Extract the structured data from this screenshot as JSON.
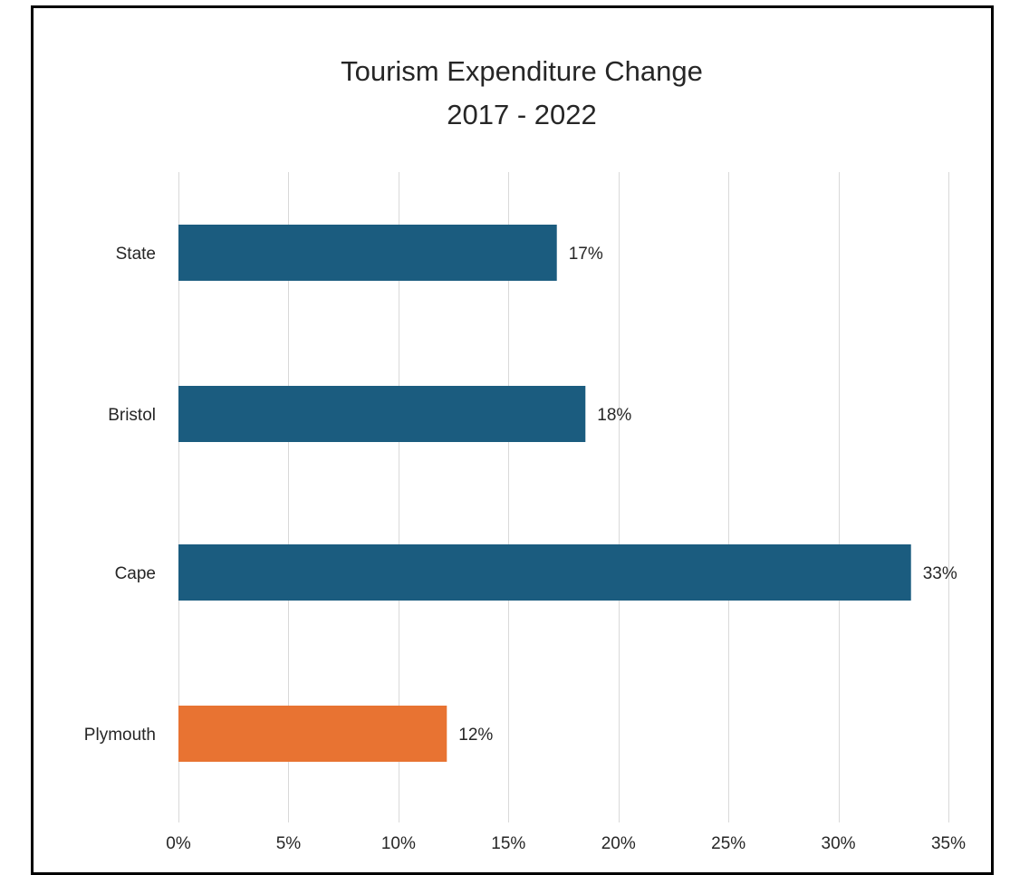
{
  "chart_data": {
    "type": "bar",
    "orientation": "horizontal",
    "title_lines": [
      "Tourism Expenditure Change",
      "2017 - 2022"
    ],
    "categories": [
      "State",
      "Bristol",
      "Cape",
      "Plymouth"
    ],
    "values": [
      17.2,
      18.5,
      33.3,
      12.2
    ],
    "data_labels": [
      "17%",
      "18%",
      "33%",
      "12%"
    ],
    "bar_colors": [
      "#1b5c7f",
      "#1b5c7f",
      "#1b5c7f",
      "#e87332"
    ],
    "x_ticks": [
      0,
      5,
      10,
      15,
      20,
      25,
      30,
      35
    ],
    "x_tick_labels": [
      "0%",
      "5%",
      "10%",
      "15%",
      "20%",
      "25%",
      "30%",
      "35%"
    ],
    "xlim": [
      0,
      35
    ],
    "grid": "vertical",
    "legend": "none"
  }
}
